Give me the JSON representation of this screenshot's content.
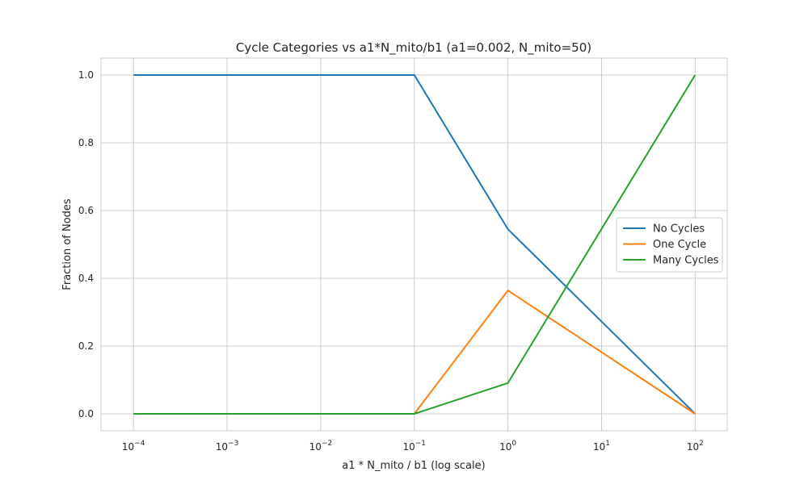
{
  "chart_data": {
    "type": "line",
    "title": "Cycle Categories vs a1*N_mito/b1 (a1=0.002, N_mito=50)",
    "xlabel": "a1 * N_mito / b1 (log scale)",
    "ylabel": "Fraction of Nodes",
    "xscale": "log",
    "x": [
      0.0001,
      0.1,
      1,
      100
    ],
    "xticks": [
      {
        "base": "10",
        "exp": "−4",
        "value": 0.0001
      },
      {
        "base": "10",
        "exp": "−3",
        "value": 0.001
      },
      {
        "base": "10",
        "exp": "−2",
        "value": 0.01
      },
      {
        "base": "10",
        "exp": "−1",
        "value": 0.1
      },
      {
        "base": "10",
        "exp": "0",
        "value": 1
      },
      {
        "base": "10",
        "exp": "1",
        "value": 10
      },
      {
        "base": "10",
        "exp": "2",
        "value": 100
      }
    ],
    "yticks": [
      "0.0",
      "0.2",
      "0.4",
      "0.6",
      "0.8",
      "1.0"
    ],
    "ytick_values": [
      0,
      0.2,
      0.4,
      0.6,
      0.8,
      1.0
    ],
    "xlim": [
      4.5e-05,
      220
    ],
    "ylim": [
      -0.05,
      1.05
    ],
    "grid": true,
    "legend_position": "center-right",
    "series": [
      {
        "name": "No Cycles",
        "color": "#1f77b4",
        "values": [
          1.0,
          1.0,
          0.545,
          0.0
        ]
      },
      {
        "name": "One Cycle",
        "color": "#ff7f0e",
        "values": [
          0.0,
          0.0,
          0.364,
          0.0
        ]
      },
      {
        "name": "Many Cycles",
        "color": "#2ca02c",
        "values": [
          0.0,
          0.0,
          0.091,
          1.0
        ]
      }
    ]
  }
}
